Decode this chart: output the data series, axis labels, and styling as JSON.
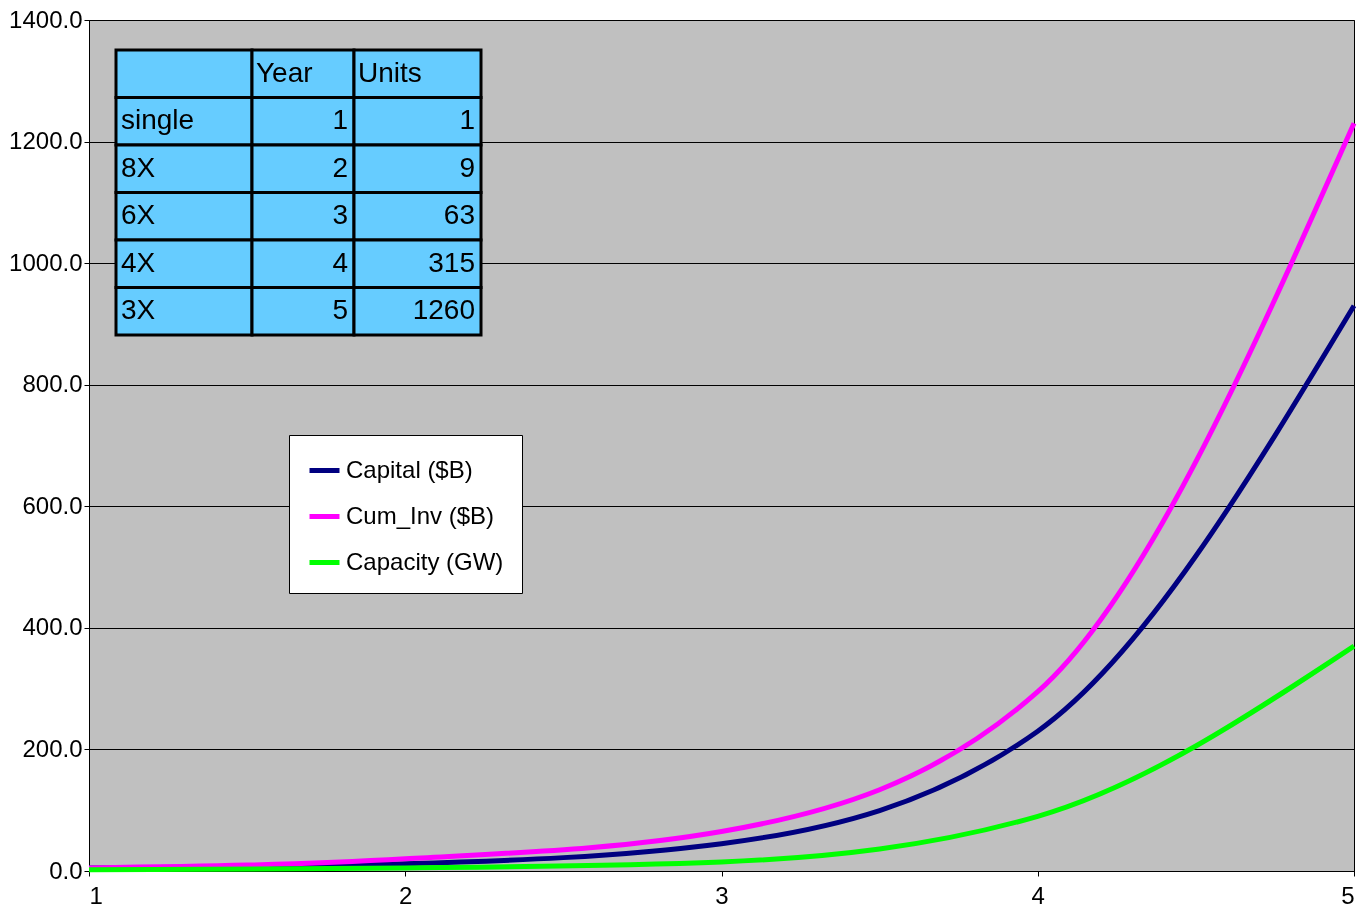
{
  "chart_data": {
    "type": "line",
    "x": [
      1,
      2,
      3,
      4,
      5
    ],
    "series": [
      {
        "name": "Capital ($B)",
        "color": "#000080",
        "values": [
          5,
          12,
          45,
          230,
          930
        ]
      },
      {
        "name": "Cum_Inv ($B)",
        "color": "#ff00ff",
        "values": [
          5,
          20,
          65,
          295,
          1230
        ]
      },
      {
        "name": "Capacity (GW)",
        "color": "#00ff00",
        "values": [
          2,
          5,
          15,
          90,
          370
        ]
      }
    ],
    "xlim": [
      1,
      5
    ],
    "xticks": [
      1,
      2,
      3,
      4,
      5
    ],
    "ylim": [
      0,
      1400
    ],
    "yticks": [
      {
        "value": 0,
        "label": "0.0"
      },
      {
        "value": 200,
        "label": "200.0"
      },
      {
        "value": 400,
        "label": "400.0"
      },
      {
        "value": 600,
        "label": "600.0"
      },
      {
        "value": 800,
        "label": "800.0"
      },
      {
        "value": 1000,
        "label": "1000.0"
      },
      {
        "value": 1200,
        "label": "1200.0"
      },
      {
        "value": 1400,
        "label": "1400.0"
      }
    ],
    "grid": "y",
    "legend": "left",
    "marker": "none",
    "line_style": "solid",
    "annotations": [
      "Year",
      "Units",
      "single",
      "1",
      "1",
      "8X",
      "2",
      "9",
      "6X",
      "3",
      "63",
      "4X",
      "4",
      "315",
      "3X",
      "5",
      "1260"
    ]
  }
}
